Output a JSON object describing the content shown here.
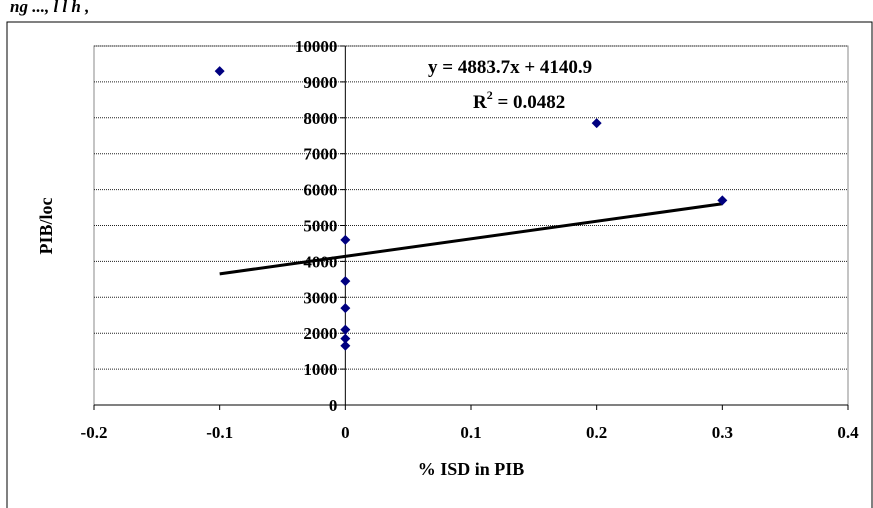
{
  "caption_fragment": "ng                    ..., l                              l  h                  ,",
  "chart_data": {
    "type": "scatter",
    "title": "",
    "xlabel": "% ISD in PIB",
    "ylabel": "PIB/loc",
    "xlim": [
      -0.2,
      0.4
    ],
    "ylim": [
      0,
      10000
    ],
    "x_ticks": [
      -0.2,
      -0.1,
      0,
      0.1,
      0.2,
      0.3,
      0.4
    ],
    "x_tick_labels": [
      "-0.2",
      "-0.1",
      "0",
      "0.1",
      "0.2",
      "0.3",
      "0.4"
    ],
    "y_ticks": [
      0,
      1000,
      2000,
      3000,
      4000,
      5000,
      6000,
      7000,
      8000,
      9000,
      10000
    ],
    "y_tick_labels": [
      "0",
      "1000",
      "2000",
      "3000",
      "4000",
      "5000",
      "6000",
      "7000",
      "8000",
      "9000",
      "10000"
    ],
    "grid": "horizontal",
    "legend": "none",
    "points": [
      {
        "x": -0.1,
        "y": 9300
      },
      {
        "x": 0,
        "y": 4600
      },
      {
        "x": 0,
        "y": 3450
      },
      {
        "x": 0,
        "y": 2700
      },
      {
        "x": 0,
        "y": 2100
      },
      {
        "x": 0,
        "y": 1850
      },
      {
        "x": 0,
        "y": 1650
      },
      {
        "x": 0.2,
        "y": 7850
      },
      {
        "x": 0.3,
        "y": 5700
      }
    ],
    "trendline": {
      "slope": 4883.7,
      "intercept": 4140.9,
      "x_range": [
        -0.1,
        0.3
      ],
      "equation_label": "y = 4883.7x + 4140.9",
      "r2_prefix": "R",
      "r2_exponent": "2",
      "r2_value": " = 0.0482"
    },
    "marker_color": "#000080",
    "line_color": "#000000"
  }
}
